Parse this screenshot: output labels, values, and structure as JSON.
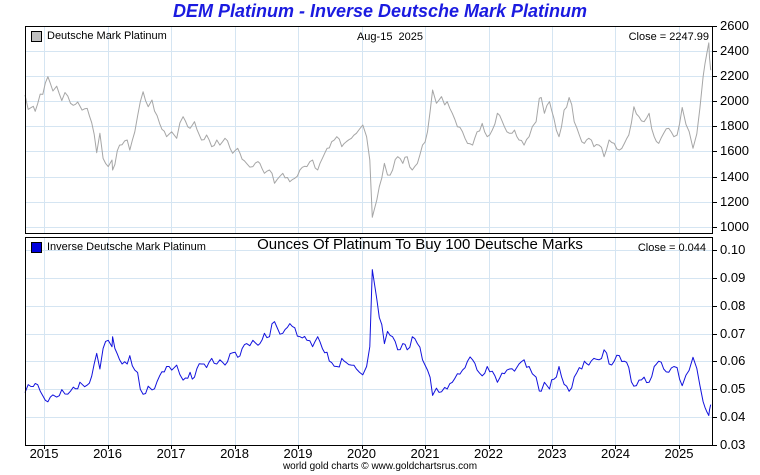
{
  "title": "DEM Platinum - Inverse Deutsche Mark Platinum",
  "footer": "world gold charts © www.goldchartsrus.com",
  "top_panel": {
    "legend": "Deutsche Mark Platinum",
    "date_label": "Aug-15  2025",
    "close_label": "Close = 2247.99"
  },
  "bottom_panel": {
    "legend": "Inverse Deutsche Mark Platinum",
    "subtitle": "Ounces Of Platinum To Buy 100 Deutsche Marks",
    "close_label": "Close = 0.044"
  },
  "colors": {
    "title": "#1b1be0",
    "grid": "#d5e5f2",
    "border": "#000000",
    "dem_line": "#a6a6a6",
    "inverse_line": "#1212dd",
    "legend_dem_fill": "#c0c0c0",
    "legend_inverse_fill": "#0000dd",
    "text": "#000000"
  },
  "chart_data": {
    "type": "line",
    "xlim": [
      2014.7,
      2025.52
    ],
    "x_ticks": [
      2015,
      2016,
      2017,
      2018,
      2019,
      2020,
      2021,
      2022,
      2023,
      2024,
      2025
    ],
    "grid": true,
    "x": [
      2014.7,
      2014.75,
      2014.83,
      2014.86,
      2015.06,
      2015.14,
      2015.2,
      2015.28,
      2015.33,
      2015.46,
      2015.53,
      2015.6,
      2015.68,
      2015.75,
      2015.83,
      2015.88,
      2015.93,
      2016.01,
      2016.07,
      2016.08,
      2016.19,
      2016.31,
      2016.35,
      2016.43,
      2016.56,
      2016.64,
      2016.7,
      2016.82,
      2016.93,
      2017.01,
      2017.09,
      2017.19,
      2017.3,
      2017.37,
      2017.48,
      2017.56,
      2017.64,
      2017.72,
      2017.77,
      2017.85,
      2017.97,
      2018.05,
      2018.19,
      2018.29,
      2018.37,
      2018.4,
      2018.47,
      2018.55,
      2018.63,
      2018.76,
      2018.87,
      2018.95,
      2019.03,
      2019.14,
      2019.23,
      2019.31,
      2019.42,
      2019.53,
      2019.61,
      2019.69,
      2019.76,
      2019.84,
      2019.92,
      2020.02,
      2020.08,
      2020.13,
      2020.17,
      2020.24,
      2020.28,
      2020.36,
      2020.41,
      2020.49,
      2020.57,
      2020.65,
      2020.72,
      2020.8,
      2020.88,
      2020.96,
      2021.04,
      2021.12,
      2021.18,
      2021.26,
      2021.31,
      2021.35,
      2021.43,
      2021.51,
      2021.59,
      2021.67,
      2021.75,
      2021.82,
      2021.9,
      2021.98,
      2022.06,
      2022.14,
      2022.25,
      2022.33,
      2022.41,
      2022.48,
      2022.56,
      2022.64,
      2022.69,
      2022.75,
      2022.8,
      2022.83,
      2022.88,
      2022.96,
      2023.03,
      2023.11,
      2023.19,
      2023.27,
      2023.35,
      2023.43,
      2023.51,
      2023.58,
      2023.66,
      2023.74,
      2023.82,
      2023.9,
      2023.98,
      2024.06,
      2024.14,
      2024.21,
      2024.29,
      2024.37,
      2024.45,
      2024.53,
      2024.61,
      2024.68,
      2024.76,
      2024.84,
      2024.92,
      2024.97,
      2025.05,
      2025.11,
      2025.16,
      2025.22,
      2025.28,
      2025.33,
      2025.38,
      2025.41,
      2025.44,
      2025.47,
      2025.48,
      2025.5
    ],
    "panels": [
      {
        "title": "Deutsche Mark Platinum",
        "close": 2247.99,
        "ylim": [
          950,
          2600
        ],
        "y_ticks": [
          "2600",
          "2400",
          "2200",
          "2000",
          "1800",
          "1600",
          "1400",
          "1200",
          "1000"
        ]
      },
      {
        "title": "Ounces Of Platinum To Buy 100 Deutsche Marks",
        "close": 0.044,
        "ylim": [
          0.03,
          0.1047
        ],
        "y_ticks": [
          "0.10",
          "0.09",
          "0.08",
          "0.07",
          "0.06",
          "0.05",
          "0.04",
          "0.03"
        ]
      }
    ],
    "series": [
      {
        "name": "Deutsche Mark Platinum",
        "panel": 0,
        "color": "#a6a6a6",
        "values": [
          2050,
          1935,
          1960,
          1920,
          2196,
          2082,
          2120,
          2005,
          2070,
          1968,
          1994,
          1930,
          1943,
          1829,
          1590,
          1745,
          1545,
          1479,
          1532,
          1452,
          1651,
          1691,
          1611,
          1757,
          2076,
          1957,
          2010,
          1824,
          1718,
          1757,
          1705,
          1877,
          1784,
          1837,
          1691,
          1731,
          1638,
          1691,
          1651,
          1705,
          1585,
          1625,
          1505,
          1479,
          1519,
          1505,
          1426,
          1452,
          1346,
          1426,
          1359,
          1386,
          1452,
          1479,
          1532,
          1452,
          1585,
          1678,
          1718,
          1638,
          1678,
          1705,
          1745,
          1811,
          1718,
          1532,
          1075,
          1213,
          1319,
          1505,
          1412,
          1452,
          1558,
          1505,
          1558,
          1452,
          1505,
          1651,
          1757,
          2090,
          1984,
          2037,
          1971,
          1997,
          1904,
          1797,
          1757,
          1664,
          1651,
          1757,
          1824,
          1718,
          1771,
          1904,
          1797,
          1745,
          1771,
          1691,
          1651,
          1718,
          1797,
          1837,
          2024,
          2030,
          1904,
          1997,
          1864,
          1718,
          1930,
          2030,
          1837,
          1731,
          1664,
          1705,
          1638,
          1651,
          1558,
          1691,
          1664,
          1611,
          1664,
          1731,
          1957,
          1877,
          1837,
          1904,
          1718,
          1664,
          1745,
          1784,
          1718,
          1731,
          1950,
          1815,
          1760,
          1625,
          1740,
          1945,
          2195,
          2300,
          2385,
          2465,
          2350,
          2247.99
        ]
      },
      {
        "name": "Inverse Deutsche Mark Platinum",
        "panel": 1,
        "color": "#1212dd",
        "values": [
          0.0488,
          0.0517,
          0.051,
          0.0521,
          0.0455,
          0.048,
          0.0472,
          0.0499,
          0.0483,
          0.0508,
          0.0502,
          0.0518,
          0.0515,
          0.0547,
          0.0629,
          0.0573,
          0.0647,
          0.0676,
          0.0653,
          0.0689,
          0.0606,
          0.0591,
          0.0621,
          0.0569,
          0.0482,
          0.0511,
          0.0498,
          0.0548,
          0.0582,
          0.0569,
          0.0587,
          0.0533,
          0.0561,
          0.0544,
          0.0591,
          0.0578,
          0.0611,
          0.0591,
          0.0606,
          0.0587,
          0.0631,
          0.0615,
          0.0664,
          0.0676,
          0.0658,
          0.0664,
          0.0701,
          0.0689,
          0.0743,
          0.0701,
          0.0736,
          0.0721,
          0.0689,
          0.0676,
          0.0653,
          0.0689,
          0.0631,
          0.0596,
          0.0582,
          0.0611,
          0.0596,
          0.0587,
          0.0573,
          0.0552,
          0.0582,
          0.0653,
          0.093,
          0.0824,
          0.0758,
          0.0664,
          0.0708,
          0.0689,
          0.0642,
          0.0664,
          0.0642,
          0.0689,
          0.0664,
          0.0606,
          0.0569,
          0.0478,
          0.0504,
          0.0491,
          0.0507,
          0.0501,
          0.0525,
          0.0556,
          0.0569,
          0.0601,
          0.0606,
          0.0569,
          0.0548,
          0.0582,
          0.0565,
          0.0525,
          0.0556,
          0.0573,
          0.0565,
          0.0591,
          0.0606,
          0.0582,
          0.0556,
          0.0544,
          0.0494,
          0.0493,
          0.0525,
          0.0501,
          0.0536,
          0.0582,
          0.0518,
          0.0493,
          0.0544,
          0.0578,
          0.0601,
          0.0587,
          0.0611,
          0.0606,
          0.0642,
          0.0591,
          0.0601,
          0.0621,
          0.0601,
          0.0578,
          0.0511,
          0.0533,
          0.0544,
          0.0525,
          0.0582,
          0.0601,
          0.0573,
          0.0561,
          0.0582,
          0.0578,
          0.0513,
          0.0551,
          0.0568,
          0.0615,
          0.0575,
          0.0514,
          0.0456,
          0.0435,
          0.0419,
          0.0406,
          0.0426,
          0.0445
        ]
      }
    ]
  }
}
